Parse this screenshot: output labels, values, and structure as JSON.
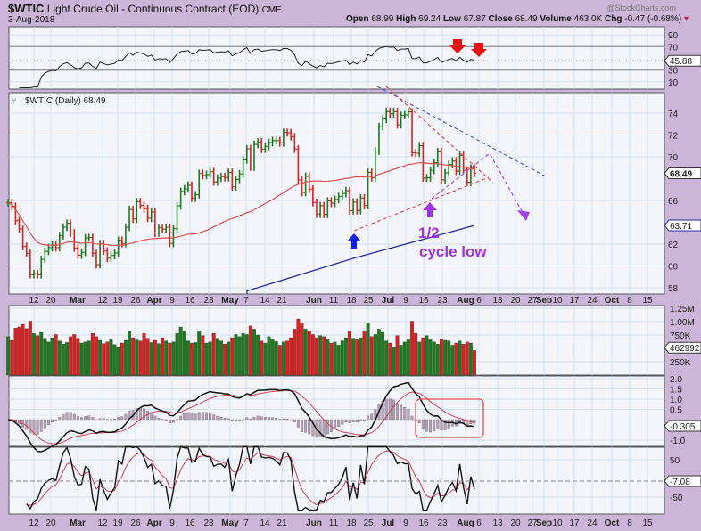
{
  "header": {
    "symbol": "$WTIC",
    "name": "Light Crude Oil - Continuous Contract (EOD)",
    "exchange": "CME",
    "date": "3-Aug-2018",
    "watermark": "@StockCharts.com",
    "open_label": "Open",
    "open": "68.99",
    "high_label": "High",
    "high": "69.24",
    "low_label": "Low",
    "low": "67.87",
    "close_label": "Close",
    "close": "68.49",
    "volume_label": "Volume",
    "volume": "463.0K",
    "chg_label": "Chg",
    "chg": "-0.47 (-0.68%)",
    "chg_icon": "down-triangle-icon"
  },
  "price_panel_label": "$WTIC (Daily) 68.49",
  "annotations": {
    "half": "1/2",
    "cycle_low": "cycle low"
  },
  "colors": {
    "up": "#1e7a1e",
    "down": "#dd1f1f",
    "ma50": "#e05050",
    "ma200": "#2a2a9a",
    "annotation": "#9b30e0",
    "background": "#cbb5d8",
    "plot": "#f3f5fa",
    "grid": "#cfe0f0"
  },
  "chart_data": {
    "type": "ohlc-bar",
    "title": "$WTIC Light Crude Oil - Continuous Contract (EOD) CME",
    "dates": [
      "2018-02-01",
      "2018-02-02",
      "2018-02-05",
      "2018-02-06",
      "2018-02-07",
      "2018-02-08",
      "2018-02-09",
      "2018-02-12",
      "2018-02-13",
      "2018-02-14",
      "2018-02-15",
      "2018-02-16",
      "2018-02-20",
      "2018-02-21",
      "2018-02-22",
      "2018-02-23",
      "2018-02-26",
      "2018-02-27",
      "2018-02-28",
      "2018-03-01",
      "2018-03-02",
      "2018-03-05",
      "2018-03-06",
      "2018-03-07",
      "2018-03-08",
      "2018-03-09",
      "2018-03-12",
      "2018-03-13",
      "2018-03-14",
      "2018-03-15",
      "2018-03-16",
      "2018-03-19",
      "2018-03-20",
      "2018-03-21",
      "2018-03-22",
      "2018-03-23",
      "2018-03-26",
      "2018-03-27",
      "2018-03-28",
      "2018-03-29",
      "2018-04-02",
      "2018-04-03",
      "2018-04-04",
      "2018-04-05",
      "2018-04-06",
      "2018-04-09",
      "2018-04-10",
      "2018-04-11",
      "2018-04-12",
      "2018-04-13",
      "2018-04-16",
      "2018-04-17",
      "2018-04-18",
      "2018-04-19",
      "2018-04-20",
      "2018-04-23",
      "2018-04-24",
      "2018-04-25",
      "2018-04-26",
      "2018-04-27",
      "2018-04-30",
      "2018-05-01",
      "2018-05-02",
      "2018-05-03",
      "2018-05-04",
      "2018-05-07",
      "2018-05-08",
      "2018-05-09",
      "2018-05-10",
      "2018-05-11",
      "2018-05-14",
      "2018-05-15",
      "2018-05-16",
      "2018-05-17",
      "2018-05-18",
      "2018-05-21",
      "2018-05-22",
      "2018-05-23",
      "2018-05-24",
      "2018-05-25",
      "2018-05-29",
      "2018-05-30",
      "2018-05-31",
      "2018-06-01",
      "2018-06-04",
      "2018-06-05",
      "2018-06-06",
      "2018-06-07",
      "2018-06-08",
      "2018-06-11",
      "2018-06-12",
      "2018-06-13",
      "2018-06-14",
      "2018-06-15",
      "2018-06-18",
      "2018-06-19",
      "2018-06-20",
      "2018-06-21",
      "2018-06-22",
      "2018-06-25",
      "2018-06-26",
      "2018-06-27",
      "2018-06-28",
      "2018-06-29",
      "2018-07-02",
      "2018-07-03",
      "2018-07-05",
      "2018-07-06",
      "2018-07-09",
      "2018-07-10",
      "2018-07-11",
      "2018-07-12",
      "2018-07-13",
      "2018-07-16",
      "2018-07-17",
      "2018-07-18",
      "2018-07-19",
      "2018-07-20",
      "2018-07-23",
      "2018-07-24",
      "2018-07-25",
      "2018-07-26",
      "2018-07-27",
      "2018-07-30",
      "2018-07-31",
      "2018-08-01",
      "2018-08-02",
      "2018-08-03"
    ],
    "close": [
      65.8,
      65.45,
      64.15,
      63.39,
      61.79,
      61.15,
      59.2,
      59.29,
      59.19,
      60.6,
      61.34,
      61.68,
      61.9,
      61.68,
      62.77,
      63.55,
      63.91,
      63.01,
      61.64,
      60.99,
      61.25,
      62.57,
      62.6,
      61.15,
      60.12,
      62.04,
      61.36,
      60.71,
      60.96,
      61.19,
      62.34,
      62.06,
      63.54,
      65.17,
      64.3,
      65.88,
      65.55,
      65.25,
      64.38,
      64.94,
      63.01,
      63.51,
      63.37,
      63.54,
      62.06,
      63.42,
      65.51,
      66.82,
      67.07,
      67.39,
      66.22,
      66.52,
      68.47,
      68.29,
      68.38,
      68.64,
      67.7,
      68.05,
      68.19,
      68.1,
      68.57,
      67.25,
      67.93,
      68.43,
      69.72,
      70.73,
      69.06,
      71.14,
      71.36,
      70.7,
      70.96,
      71.31,
      71.49,
      71.49,
      71.28,
      72.24,
      72.2,
      71.84,
      70.71,
      67.88,
      66.73,
      68.21,
      67.04,
      65.81,
      64.75,
      65.52,
      64.73,
      65.95,
      65.74,
      66.1,
      66.36,
      66.64,
      66.89,
      65.06,
      65.85,
      65.07,
      66.22,
      65.54,
      68.58,
      68.08,
      70.53,
      72.76,
      73.45,
      74.15,
      73.94,
      74.14,
      72.94,
      73.8,
      73.85,
      74.11,
      70.38,
      70.33,
      71.01,
      68.06,
      68.08,
      68.76,
      69.46,
      70.46,
      67.89,
      68.52,
      69.3,
      69.61,
      68.69,
      70.13,
      68.76,
      67.66,
      68.96,
      68.49
    ],
    "volume_k": [
      720,
      650,
      880,
      900,
      950,
      870,
      1010,
      780,
      740,
      800,
      690,
      620,
      700,
      760,
      640,
      580,
      610,
      720,
      760,
      690,
      600,
      620,
      640,
      780,
      720,
      650,
      590,
      620,
      660,
      570,
      520,
      600,
      650,
      820,
      700,
      660,
      640,
      780,
      690,
      610,
      650,
      590,
      700,
      640,
      600,
      620,
      780,
      900,
      820,
      640,
      600,
      610,
      830,
      740,
      600,
      620,
      780,
      690,
      640,
      580,
      620,
      700,
      760,
      720,
      780,
      760,
      920,
      860,
      750,
      640,
      600,
      720,
      680,
      630,
      560,
      620,
      640,
      700,
      860,
      1050,
      980,
      860,
      820,
      760,
      700,
      740,
      720,
      680,
      600,
      620,
      560,
      640,
      700,
      820,
      690,
      660,
      700,
      820,
      980,
      720,
      760,
      860,
      800,
      640,
      600,
      520,
      740,
      560,
      620,
      680,
      1010,
      780,
      620,
      700,
      740,
      660,
      620,
      580,
      680,
      650,
      640,
      560,
      600,
      640,
      580,
      620,
      600,
      463
    ],
    "ma200_points": [
      [
        "2018-05-07",
        57.7
      ],
      [
        "2018-06-19",
        60.8
      ],
      [
        "2018-08-03",
        63.71
      ]
    ],
    "x_tick_labels": [
      "12",
      "20",
      "Mar",
      "12",
      "19",
      "26",
      "Apr",
      "9",
      "16",
      "23",
      "May",
      "7",
      "14",
      "21",
      "Jun",
      "11",
      "18",
      "25",
      "Jul",
      "9",
      "16",
      "23",
      "Aug",
      "6",
      "13",
      "20",
      "27",
      "Sep",
      "10",
      "17",
      "24",
      "Oct",
      "8",
      "15"
    ],
    "month_labels": [
      "Mar",
      "Apr",
      "May",
      "Jun",
      "Jul",
      "Aug",
      "Sep",
      "Oct"
    ],
    "price_axis": {
      "ticks": [
        "74",
        "72",
        "70",
        "66",
        "62",
        "60",
        "58"
      ],
      "ylim": [
        57.5,
        75.5
      ],
      "last": "68.49",
      "ma200_last": "63.71"
    },
    "rsi_axis": {
      "ticks": [
        "90",
        "70",
        "30",
        "10"
      ],
      "last": "45.88"
    },
    "volume_axis": {
      "ticks": [
        "1.25M",
        "1.00M",
        "750K",
        "250K"
      ],
      "last": "462992"
    },
    "macd_axis": {
      "ticks": [
        "2.0",
        "1.5",
        "1.0",
        "0.5",
        "-1.0"
      ],
      "last": "-0.305"
    },
    "osc_axis": {
      "ticks": [
        "50",
        "-50"
      ],
      "last": "-7.08"
    }
  }
}
